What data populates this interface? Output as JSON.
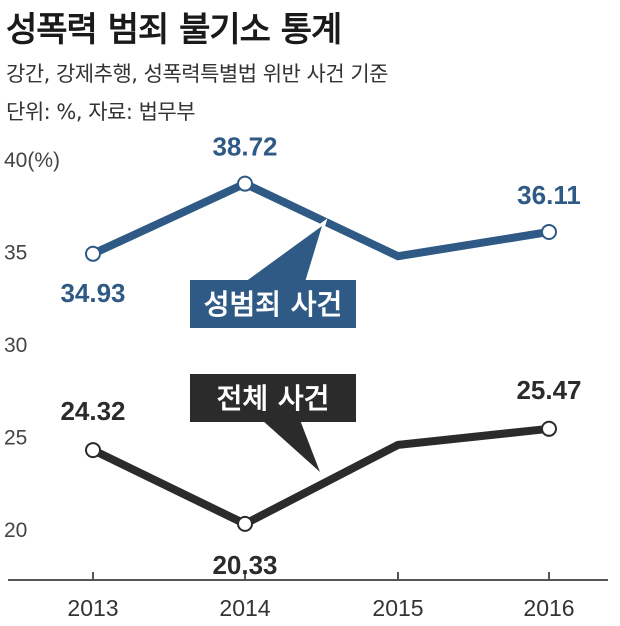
{
  "title": "성폭력 범죄 불기소 통계",
  "subtitle": "강간, 강제추행, 성폭력특별법 위반 사건 기준",
  "unit_note": "단위: %, 자료: 법무부",
  "colors": {
    "sexual_crime": "#2f5a86",
    "total": "#2b2b2b",
    "axis": "#555555"
  },
  "chart_data": {
    "type": "line",
    "categories": [
      "2013",
      "2014",
      "2015",
      "2016"
    ],
    "ylim": [
      18,
      40
    ],
    "yticks": [
      "40(%)",
      "35",
      "30",
      "25",
      "20"
    ],
    "ytick_values": [
      40,
      35,
      30,
      25,
      20
    ],
    "grid": false,
    "series": [
      {
        "name": "성범죄 사건",
        "values": [
          34.93,
          38.72,
          34.8,
          36.11
        ],
        "labels": [
          "34.93",
          "38.72",
          "",
          "36.11"
        ]
      },
      {
        "name": "전체 사건",
        "values": [
          24.32,
          20.33,
          24.6,
          25.47
        ],
        "labels": [
          "24.32",
          "20.33",
          "",
          "25.47"
        ]
      }
    ]
  }
}
